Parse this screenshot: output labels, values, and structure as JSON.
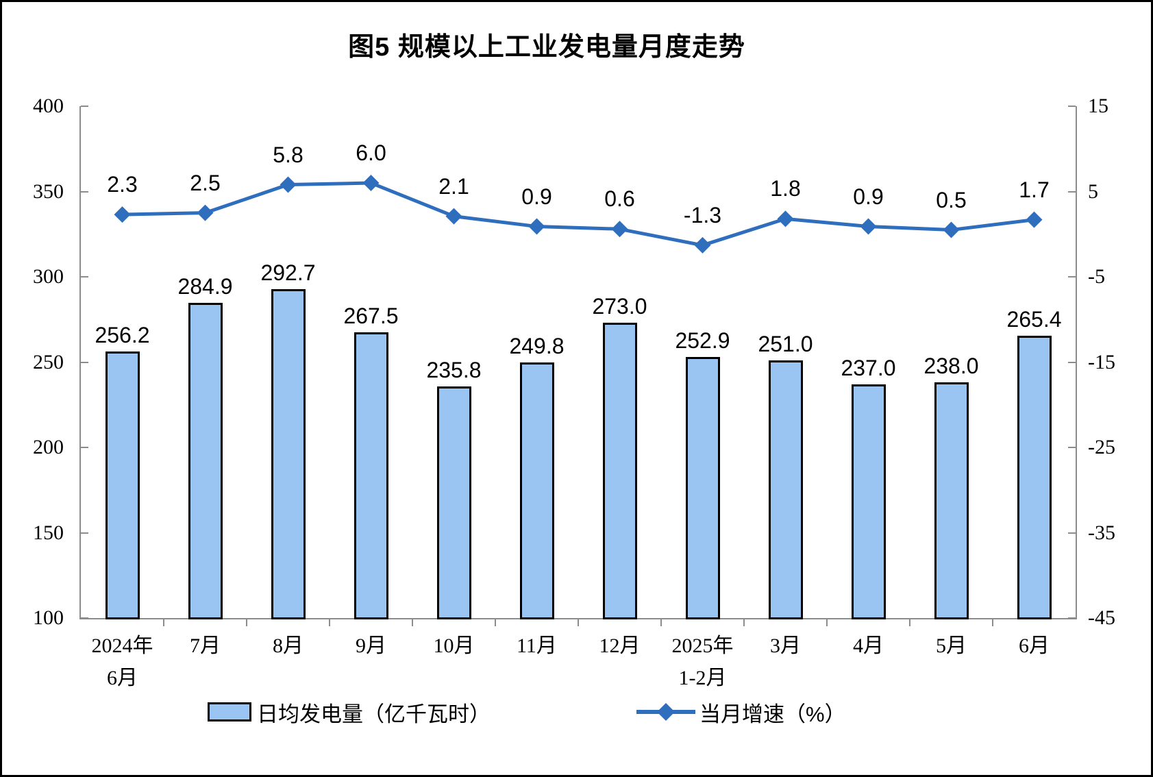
{
  "title": "图5 规模以上工业发电量月度走势",
  "colors": {
    "bar_fill": "#9AC5F2",
    "bar_border": "#000000",
    "line": "#2F6EBD",
    "axis": "#8C8C8C",
    "text": "#000000"
  },
  "chart_data": {
    "type": "bar+line",
    "categories": [
      "2024年\n6月",
      "7月",
      "8月",
      "9月",
      "10月",
      "11月",
      "12月",
      "2025年\n1-2月",
      "3月",
      "4月",
      "5月",
      "6月"
    ],
    "series": [
      {
        "name": "日均发电量（亿千瓦时）",
        "type": "bar",
        "axis": "left",
        "values": [
          256.2,
          284.9,
          292.7,
          267.5,
          235.8,
          249.8,
          273.0,
          252.9,
          251.0,
          237.0,
          238.0,
          265.4
        ]
      },
      {
        "name": "当月增速（%）",
        "type": "line",
        "axis": "right",
        "values": [
          2.3,
          2.5,
          5.8,
          6.0,
          2.1,
          0.9,
          0.6,
          -1.3,
          1.8,
          0.9,
          0.5,
          1.7
        ]
      }
    ],
    "left_axis": {
      "min": 100,
      "max": 400,
      "step": 50,
      "ticks": [
        "400",
        "350",
        "300",
        "250",
        "200",
        "150",
        "100"
      ]
    },
    "right_axis": {
      "min": -45,
      "max": 15,
      "step": 10,
      "ticks": [
        "15",
        "5",
        "-5",
        "-15",
        "-25",
        "-35",
        "-45"
      ]
    },
    "grid": false,
    "legend_position": "bottom",
    "data_labels": true
  },
  "legend": {
    "bar_label": "日均发电量（亿千瓦时）",
    "line_label": "当月增速（%）"
  }
}
